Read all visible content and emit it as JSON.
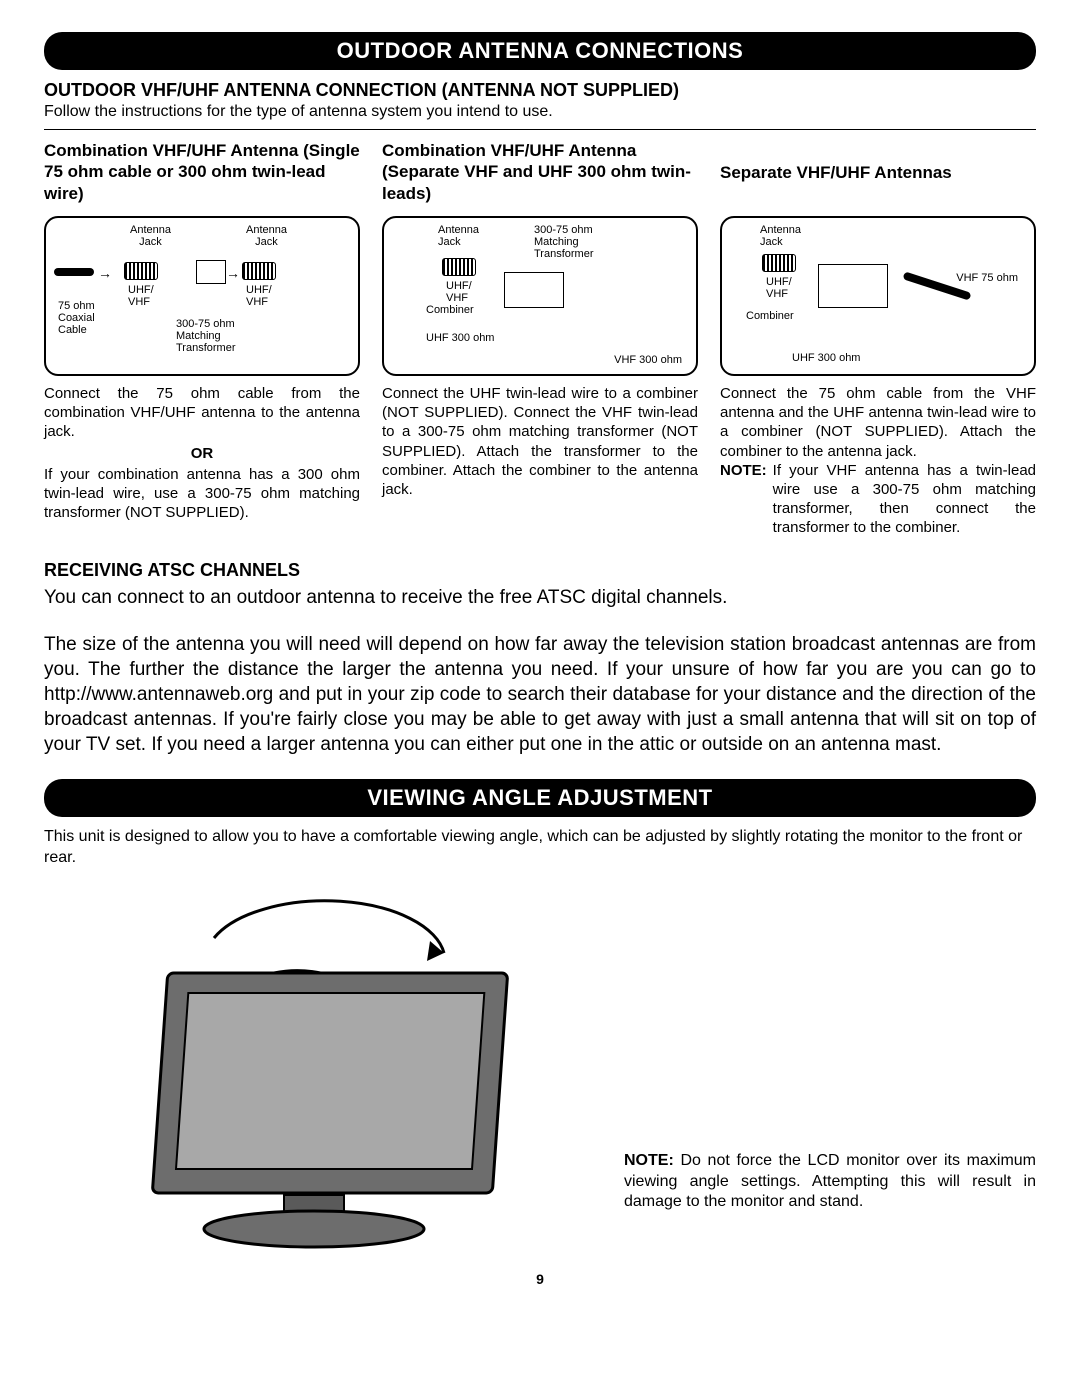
{
  "page_number": "9",
  "section1": {
    "header": "OUTDOOR ANTENNA CONNECTIONS",
    "subheading": "OUTDOOR VHF/UHF ANTENNA CONNECTION (ANTENNA NOT SUPPLIED)",
    "intro": "Follow the instructions for the type of antenna system you intend to use.",
    "columns": [
      {
        "title": "Combination VHF/UHF Antenna (Single 75 ohm cable or 300 ohm twin-lead wire)",
        "diagram_labels": {
          "antenna_jack_l": "Antenna\nJack",
          "antenna_jack_r": "Antenna\nJack",
          "uhf_vhf_l": "UHF/\nVHF",
          "uhf_vhf_r": "UHF/\nVHF",
          "coax": "75 ohm\nCoaxial\nCable",
          "transformer": "300-75 ohm\nMatching\nTransformer"
        },
        "body1": "Connect the 75 ohm cable from the combination VHF/UHF antenna to the antenna jack.",
        "or": "OR",
        "body2": "If your combination antenna has a 300 ohm twin-lead wire, use a 300-75 ohm matching transformer (NOT SUPPLIED)."
      },
      {
        "title": "Combination VHF/UHF Antenna (Separate VHF and UHF 300 ohm twin-leads)",
        "diagram_labels": {
          "antenna_jack": "Antenna\nJack",
          "transformer": "300-75 ohm\nMatching\nTransformer",
          "uhf_vhf": "UHF/\nVHF",
          "combiner": "Combiner",
          "uhf300": "UHF 300 ohm",
          "vhf300": "VHF 300 ohm"
        },
        "body": "Connect the UHF twin-lead wire to a combiner (NOT SUPPLIED). Connect the VHF twin-lead to a 300-75 ohm matching transformer (NOT SUPPLIED). Attach the transformer to the combiner. Attach the combiner to the antenna jack."
      },
      {
        "title": "Separate VHF/UHF Antennas",
        "diagram_labels": {
          "antenna_jack": "Antenna\nJack",
          "uhf_vhf": "UHF/\nVHF",
          "combiner": "Combiner",
          "vhf75": "VHF 75 ohm",
          "uhf300": "UHF 300 ohm"
        },
        "body": "Connect the 75 ohm cable from the VHF antenna and the UHF antenna twin-lead wire to a combiner (NOT SUPPLIED). Attach the combiner to the antenna jack.",
        "note_label": "NOTE:",
        "note_body": "If your VHF antenna has a twin-lead wire use a 300-75 ohm matching transformer, then connect the transformer to the combiner."
      }
    ]
  },
  "receiving": {
    "title": "RECEIVING ATSC CHANNELS",
    "p1": "You can connect to an outdoor antenna to receive the free ATSC digital channels.",
    "p2": "The size of the antenna you will need will depend on how far away the television station broadcast antennas are from you. The further the distance the larger the antenna you need. If your unsure of how far you are you can go to  http://www.antennaweb.org and put in your zip code to search their database for your distance and the direction of the broadcast antennas. If you're fairly close you may be able to get away with just a small antenna that will sit on top of your TV set. If you need a larger antenna you can either put one in the attic or outside on an antenna mast."
  },
  "section2": {
    "header": "VIEWING ANGLE ADJUSTMENT",
    "intro": "This unit is designed to allow you to have a comfortable viewing angle, which can be adjusted by slightly rotating the monitor to the front or rear.",
    "note_label": "NOTE:",
    "note_body": "Do not force the LCD monitor over its maximum viewing angle settings. Attempting this will result in damage to the monitor and stand."
  },
  "colors": {
    "header_bg": "#000000",
    "header_text": "#ffffff",
    "page_bg": "#ffffff",
    "text": "#000000",
    "tv_body": "#6d6d6d",
    "tv_screen": "#a8a8a8",
    "tv_stand": "#5a5a5a"
  }
}
